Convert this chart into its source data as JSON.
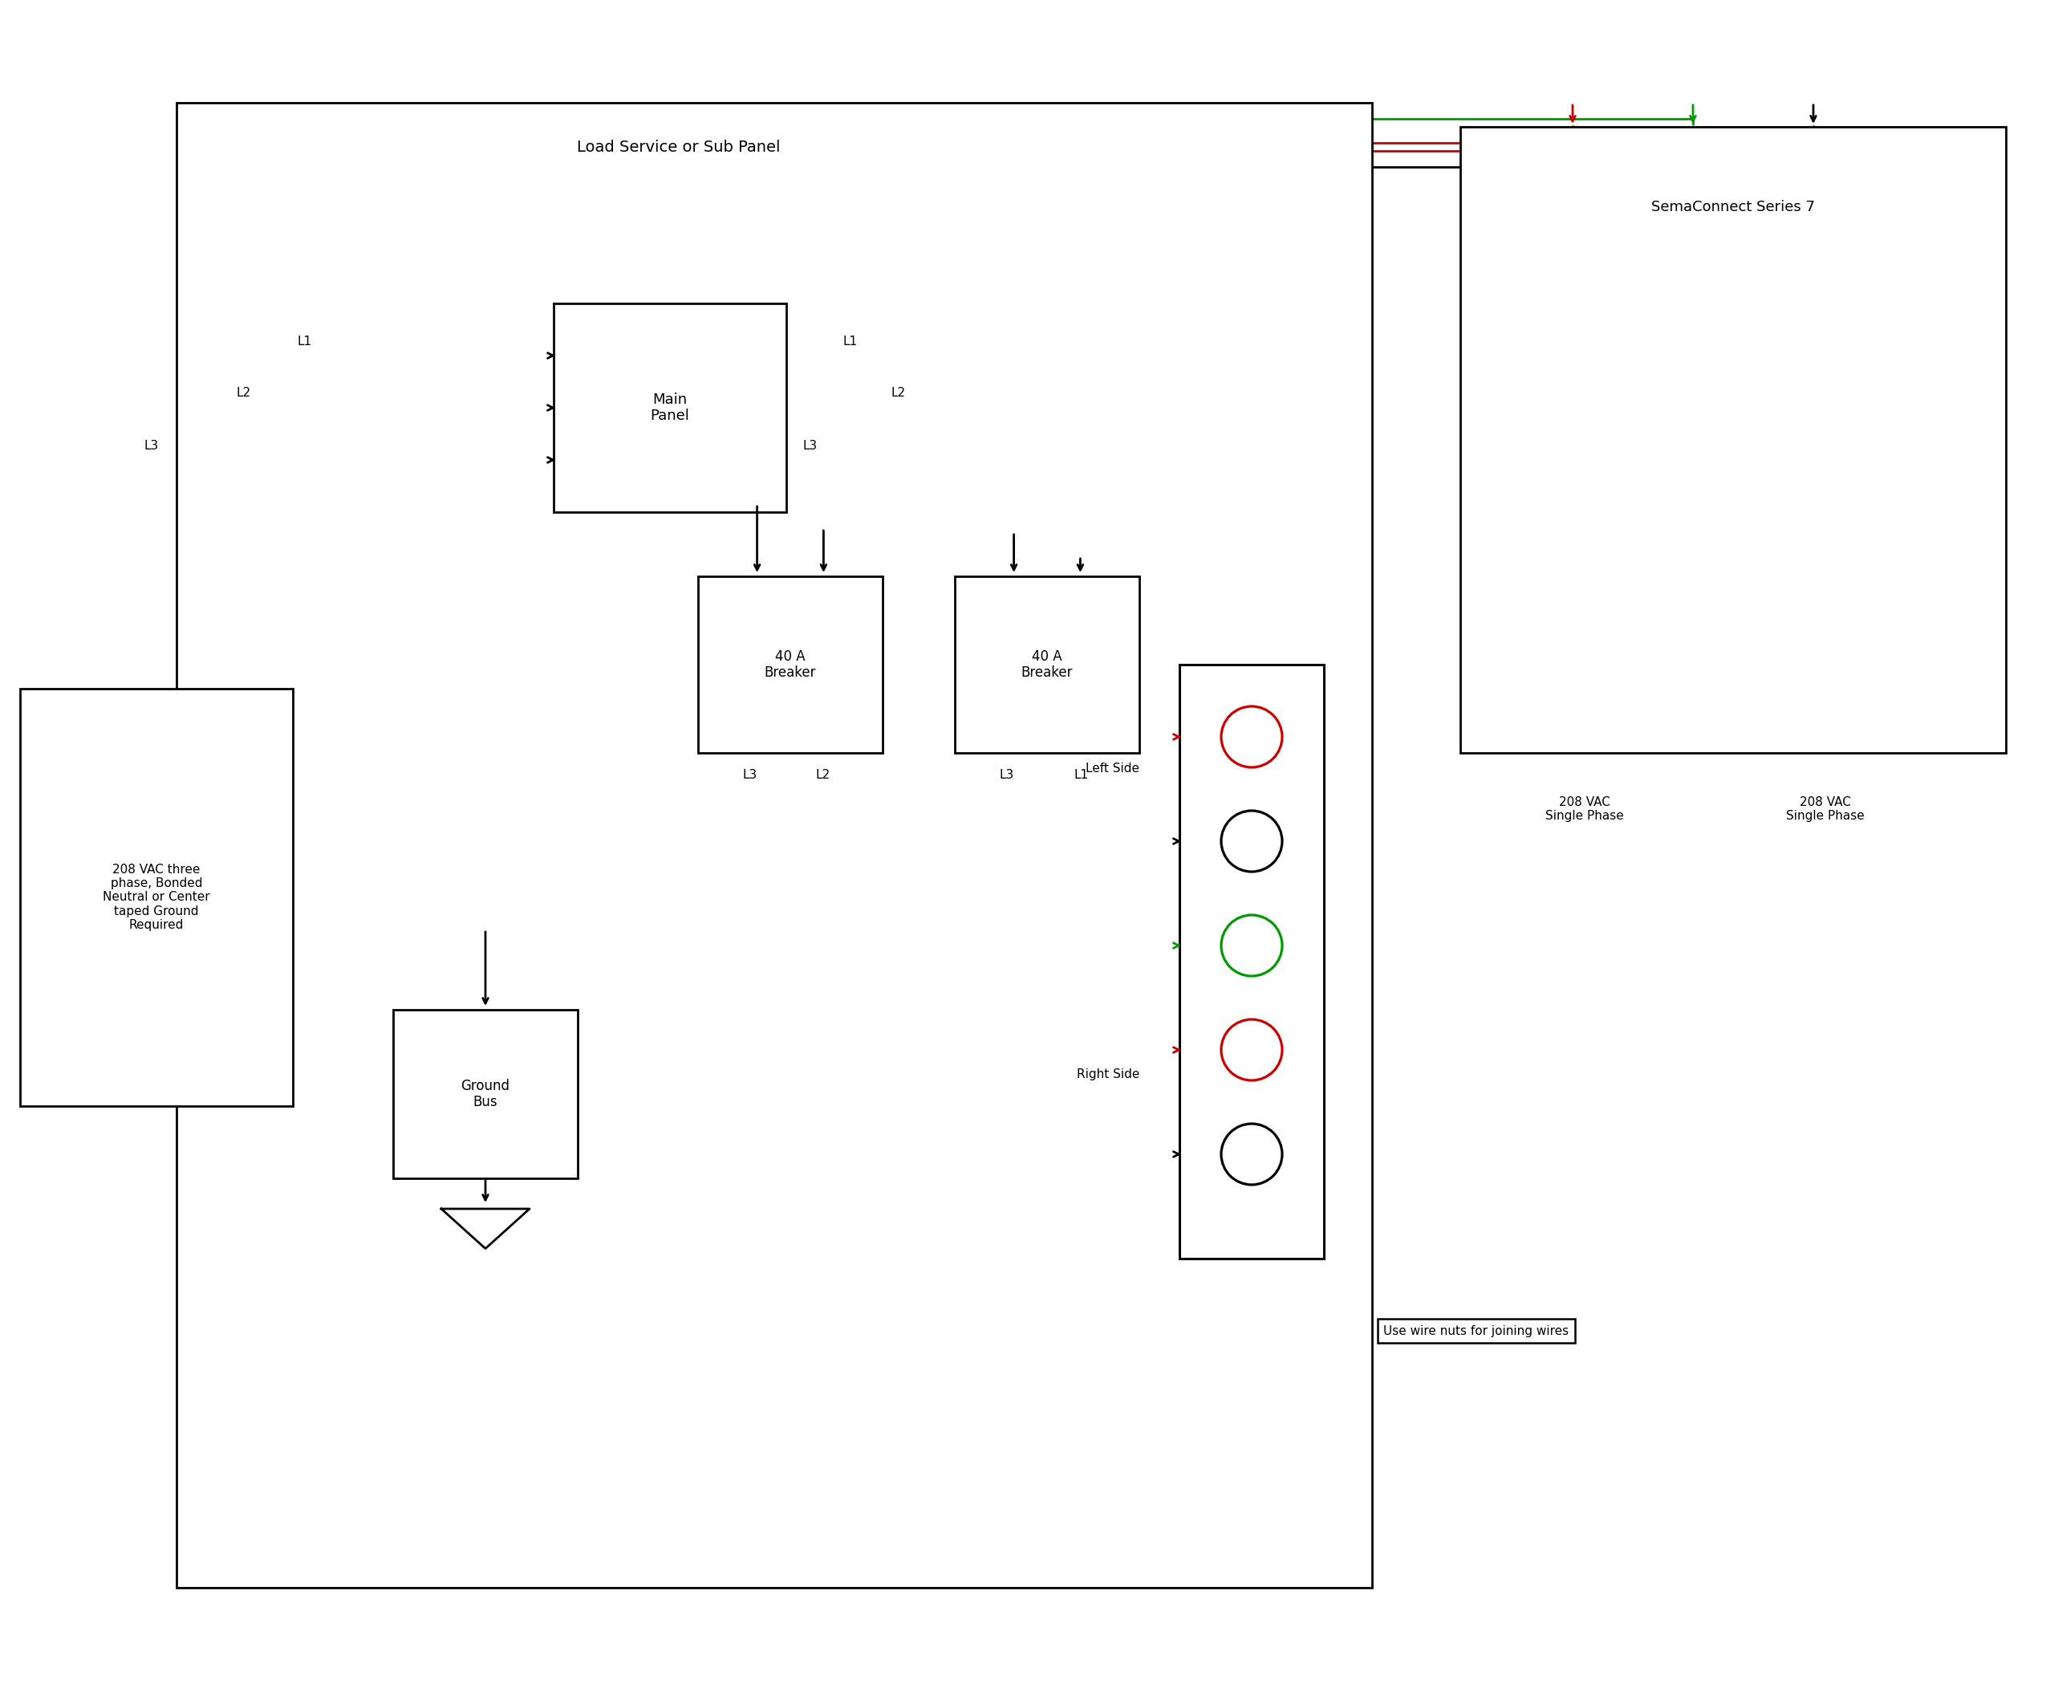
{
  "bg": "#ffffff",
  "lc": "#000000",
  "rc": "#cc0000",
  "gc": "#009900",
  "panel_title": "Load Service or Sub Panel",
  "sema_title": "SemaConnect Series 7",
  "vac_text": "208 VAC three\nphase, Bonded\nNeutral or Center\ntaped Ground\nRequired",
  "mp_text": "Main\nPanel",
  "brk_text": "40 A\nBreaker",
  "gb_text": "Ground\nBus",
  "left_side": "Left Side",
  "right_side": "Right Side",
  "wire_nut": "Use wire nuts for joining wires",
  "vac_sp": "208 VAC\nSingle Phase",
  "lw": 2.0,
  "lw_thin": 1.5
}
